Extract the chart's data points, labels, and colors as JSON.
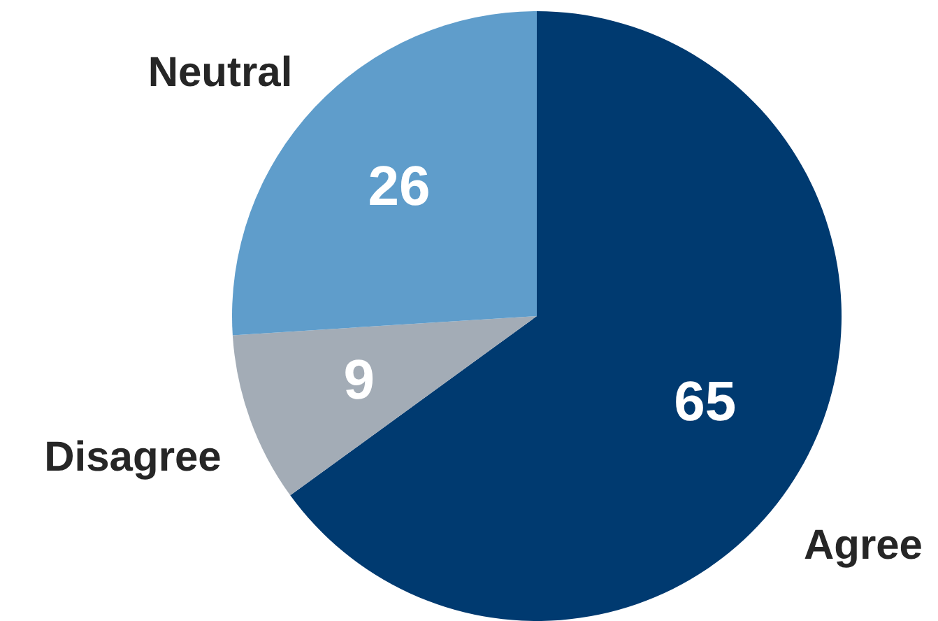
{
  "chart_data": {
    "type": "pie",
    "categories": [
      "Agree",
      "Disagree",
      "Neutral"
    ],
    "values": [
      65,
      9,
      26
    ],
    "colors": [
      "#003a70",
      "#a3acb6",
      "#5f9dcb"
    ],
    "data_labels": true,
    "legend": false
  }
}
